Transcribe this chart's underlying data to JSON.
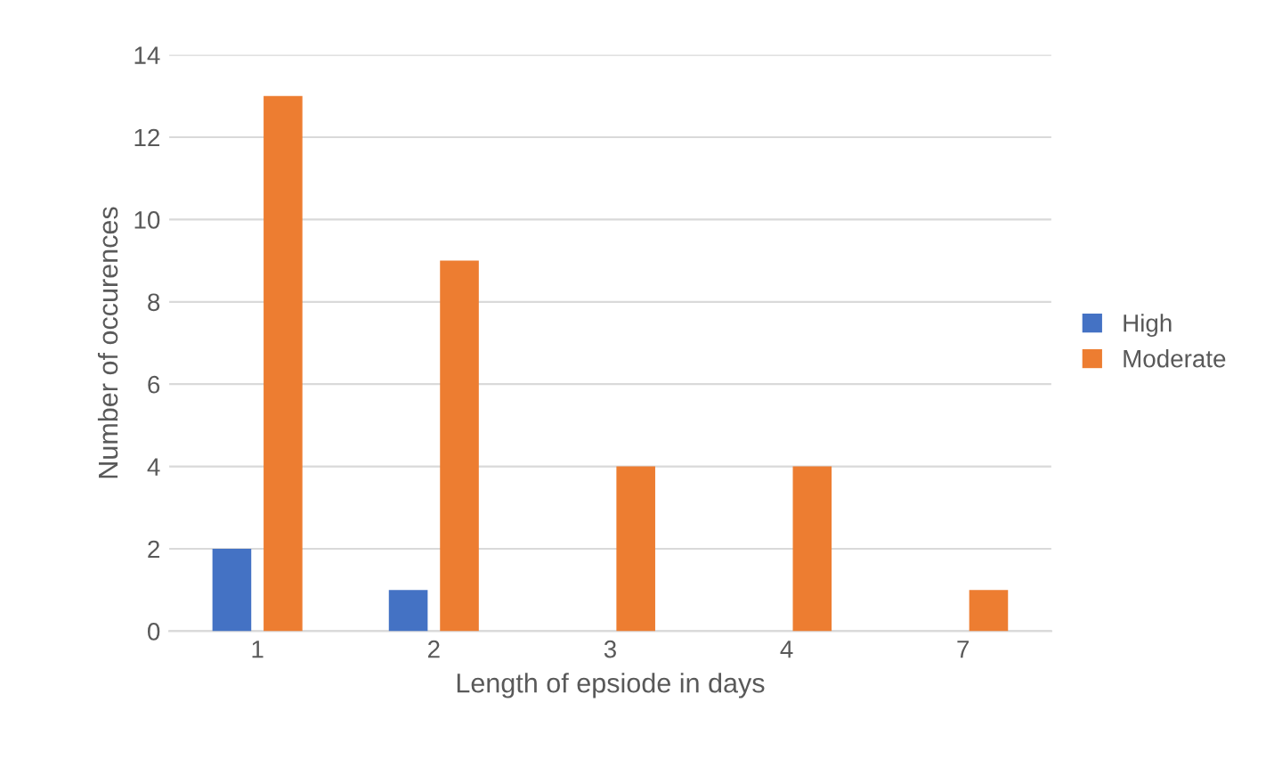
{
  "chart_data": {
    "type": "bar",
    "xlabel": "Length of epsiode in days",
    "ylabel": "Number of occurences",
    "categories": [
      "1",
      "2",
      "3",
      "4",
      "7"
    ],
    "series": [
      {
        "name": "High",
        "color": "#4472c4",
        "values": [
          2,
          1,
          0,
          0,
          0
        ]
      },
      {
        "name": "Moderate",
        "color": "#ed7d31",
        "values": [
          13,
          9,
          4,
          4,
          1
        ]
      }
    ],
    "ylim": [
      0,
      14
    ],
    "yticks": [
      0,
      2,
      4,
      6,
      8,
      10,
      12,
      14
    ],
    "grid": "y",
    "legend": "right"
  }
}
